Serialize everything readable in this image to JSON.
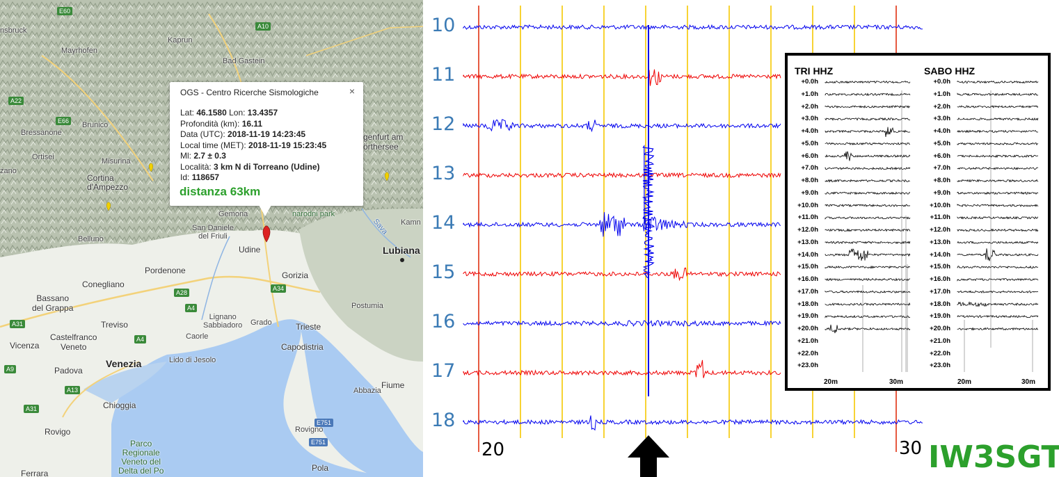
{
  "map": {
    "labels": {
      "innsbruck": "nsbruck",
      "mayrhofen": "Mayrhofen",
      "bad_gastein": "Bad Gastein",
      "brunico": "Brunico",
      "bressanone": "Bressanone",
      "ortisei": "Ortisei",
      "misurina": "Misurina",
      "cortina": "Cortina\nd'Ampezzo",
      "bolzano": "zano",
      "belluno": "Belluno",
      "klagenfurt": "genfurt am\nörthersee",
      "gemona": "Gemona",
      "san_daniele": "San Daniele\ndel Friuli",
      "udine": "Udine",
      "pordenone": "Pordenone",
      "conegliano": "Conegliano",
      "gorizia": "Gorizia",
      "lubiana": "Lubiana",
      "kamnik": "Kamn",
      "bassano": "Bassano\ndel Grappa",
      "treviso": "Treviso",
      "castelfranco": "Castelfranco\nVeneto",
      "vicenza": "Vicenza",
      "padova": "Padova",
      "venezia": "Venezia",
      "lido": "Lido di Jesolo",
      "lignano": "Lignano\nSabbiadoro",
      "grado": "Grado",
      "caorle": "Caorle",
      "trieste": "Trieste",
      "capodistria": "Capodistria",
      "postumia": "Postumia",
      "chioggia": "Chioggia",
      "abbazia": "Abbazia",
      "fiume": "Fiume",
      "rovigno": "Rovigno",
      "pola": "Pola",
      "rovigo": "Rovigo",
      "ferrara": "Ferrara",
      "park_delta": "Parco\nRegionale\nVeneto del\nDelta del Po",
      "triglav": "narodni park",
      "sava": "Sava",
      "kaprun": "Kaprun"
    },
    "shields": {
      "e60": "E60",
      "a10": "A10",
      "a22": "A22",
      "e66": "E66",
      "a28": "A28",
      "a4a": "A4",
      "a4b": "A4",
      "a34": "A34",
      "a31a": "A31",
      "a31b": "A31",
      "a13": "A13",
      "e751a": "E751",
      "e751b": "E751",
      "a9": "A9"
    }
  },
  "popup": {
    "title": "OGS - Centro Ricerche Sismologiche",
    "close": "×",
    "lat_label": "Lat:",
    "lat": "46.1580",
    "lon_label": "Lon:",
    "lon": "13.4357",
    "depth_label": "Profondità (km):",
    "depth": "16.11",
    "date_label": "Data (UTC):",
    "date": "2018-11-19 14:23:45",
    "local_label": "Local time (MET):",
    "local": "2018-11-19 15:23:45",
    "ml_label": "Ml:",
    "ml": "2.7 ± 0.3",
    "loc_label": "Località:",
    "loc": "3 km N di Torreano (Udine)",
    "id_label": "Id:",
    "id": "118657",
    "distance": "distanza 63km"
  },
  "drum": {
    "hours": [
      "10",
      "11",
      "12",
      "13",
      "14",
      "15",
      "16",
      "17",
      "18"
    ],
    "minute_start": "20",
    "minute_end": "30",
    "callsign": "IW3SGT",
    "colors": {
      "blue": "#0000ee",
      "red": "#ee0000",
      "gridYellow": "#f5c800",
      "gridRed": "#e03010"
    }
  },
  "inset": {
    "station1": "TRI HHZ",
    "station2": "SABO HHZ",
    "rows": [
      "+0.0h",
      "+1.0h",
      "+2.0h",
      "+3.0h",
      "+4.0h",
      "+5.0h",
      "+6.0h",
      "+7.0h",
      "+8.0h",
      "+9.0h",
      "+10.0h",
      "+11.0h",
      "+12.0h",
      "+13.0h",
      "+14.0h",
      "+15.0h",
      "+16.0h",
      "+17.0h",
      "+18.0h",
      "+19.0h",
      "+20.0h",
      "+21.0h",
      "+22.0h",
      "+23.0h"
    ],
    "tick_20": "20m",
    "tick_30": "30m"
  }
}
